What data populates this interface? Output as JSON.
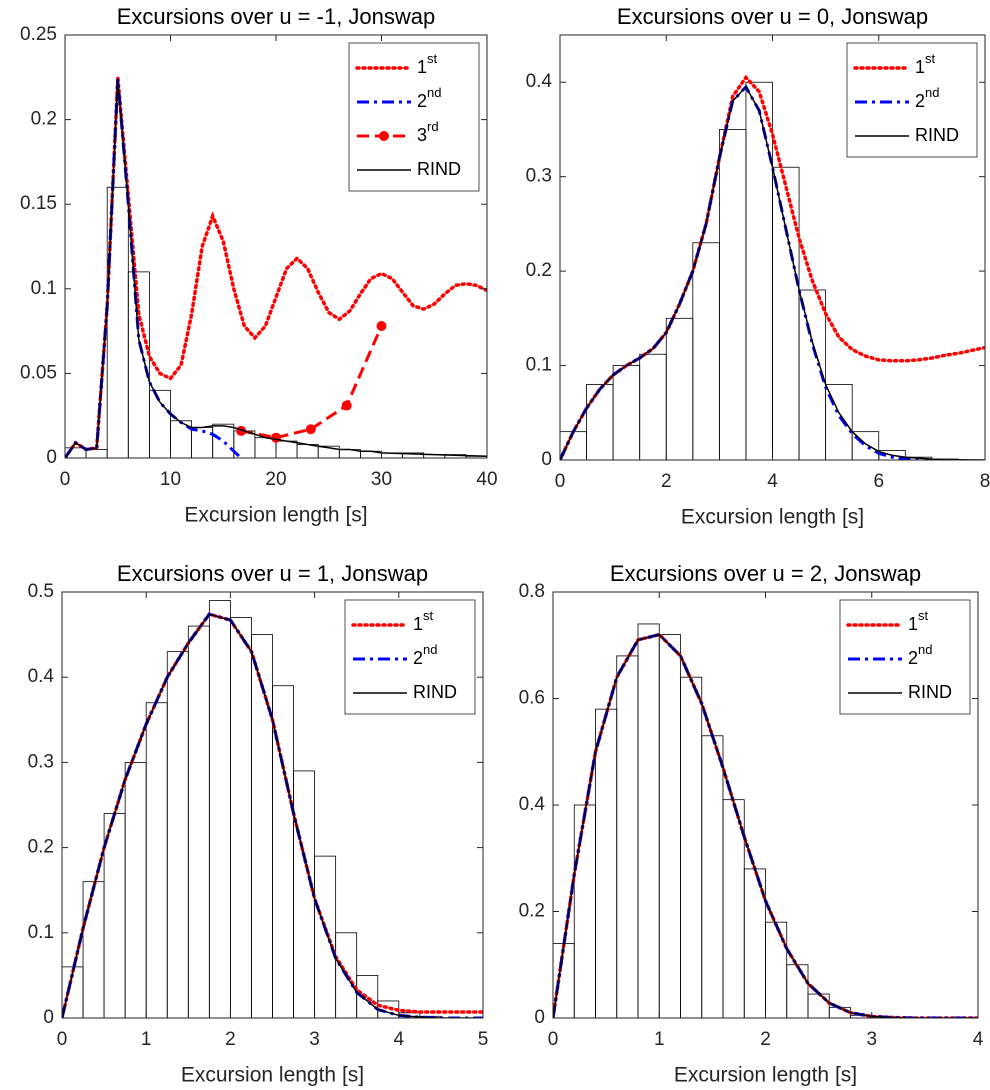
{
  "chart_data": [
    {
      "type": "line",
      "title": "Excursions over u = -1, Jonswap",
      "xlabel": "Excursion length [s]",
      "xlim": [
        0,
        40
      ],
      "ylim": [
        0,
        0.25
      ],
      "xticks": [
        0,
        10,
        20,
        30,
        40
      ],
      "yticks": [
        0,
        0.05,
        0.1,
        0.15,
        0.2,
        0.25
      ],
      "legend": "northeast",
      "series": [
        {
          "name": "1st",
          "color": "#ff0000",
          "style": "dotted",
          "x": [
            0,
            1,
            2,
            3,
            4,
            5,
            6,
            7,
            8,
            9,
            10,
            11,
            12,
            13,
            14,
            15,
            16,
            17,
            18,
            19,
            20,
            21,
            22,
            23,
            24,
            25,
            26,
            27,
            28,
            29,
            30,
            31,
            32,
            33,
            34,
            35,
            36,
            37,
            38,
            39,
            40
          ],
          "values": [
            0,
            0.009,
            0.005,
            0.006,
            0.09,
            0.225,
            0.155,
            0.085,
            0.06,
            0.05,
            0.047,
            0.055,
            0.085,
            0.125,
            0.143,
            0.128,
            0.1,
            0.078,
            0.071,
            0.078,
            0.095,
            0.112,
            0.118,
            0.112,
            0.098,
            0.086,
            0.082,
            0.087,
            0.097,
            0.106,
            0.109,
            0.106,
            0.098,
            0.09,
            0.088,
            0.091,
            0.097,
            0.102,
            0.103,
            0.102,
            0.099
          ]
        },
        {
          "name": "2nd",
          "color": "#0000ff",
          "style": "dashdot",
          "x": [
            0,
            1,
            2,
            3,
            4,
            5,
            6,
            7,
            8,
            9,
            10,
            11,
            12,
            13,
            14,
            15,
            16,
            16.7
          ],
          "values": [
            0,
            0.009,
            0.005,
            0.006,
            0.09,
            0.224,
            0.15,
            0.07,
            0.045,
            0.033,
            0.026,
            0.021,
            0.017,
            0.016,
            0.014,
            0.01,
            0.004,
            0
          ]
        },
        {
          "name": "3rd",
          "color": "#ff0000",
          "style": "dashed",
          "marker": "o",
          "x": [
            16.7,
            20,
            23.3,
            26.7,
            30
          ],
          "values": [
            0.016,
            0.012,
            0.017,
            0.031,
            0.078
          ]
        },
        {
          "name": "RIND",
          "color": "#000000",
          "style": "solid",
          "x": [
            0,
            1,
            2,
            3,
            4,
            5,
            6,
            7,
            8,
            9,
            10,
            11,
            12,
            13,
            14,
            15,
            16,
            17,
            18,
            19,
            20,
            21,
            22,
            23,
            24,
            25,
            26,
            27,
            28,
            29,
            30,
            35,
            40
          ],
          "values": [
            0,
            0.009,
            0.005,
            0.006,
            0.09,
            0.224,
            0.15,
            0.07,
            0.045,
            0.033,
            0.026,
            0.021,
            0.018,
            0.018,
            0.019,
            0.019,
            0.018,
            0.016,
            0.014,
            0.012,
            0.011,
            0.01,
            0.009,
            0.008,
            0.007,
            0.006,
            0.005,
            0.005,
            0.004,
            0.004,
            0.003,
            0.002,
            0.001
          ]
        }
      ],
      "histogram": {
        "bins": [
          0,
          2,
          4,
          6,
          8,
          10,
          12,
          14,
          16,
          18,
          20,
          22,
          24,
          26,
          28,
          30,
          32,
          34,
          36,
          38,
          40
        ],
        "counts": [
          0.006,
          0.005,
          0.16,
          0.11,
          0.04,
          0.022,
          0.018,
          0.02,
          0.016,
          0.012,
          0.01,
          0.008,
          0.007,
          0.005,
          0.004,
          0.003,
          0.003,
          0.002,
          0.002,
          0.001
        ]
      }
    },
    {
      "type": "line",
      "title": "Excursions over u = 0, Jonswap",
      "xlabel": "Excursion length [s]",
      "xlim": [
        0,
        8
      ],
      "ylim": [
        0,
        0.45
      ],
      "xticks": [
        0,
        2,
        4,
        6,
        8
      ],
      "yticks": [
        0,
        0.1,
        0.2,
        0.3,
        0.4
      ],
      "legend": "northeast",
      "series": [
        {
          "name": "1st",
          "color": "#ff0000",
          "style": "dotted",
          "x": [
            0,
            0.25,
            0.5,
            0.75,
            1,
            1.25,
            1.5,
            1.75,
            2,
            2.25,
            2.5,
            2.75,
            3,
            3.25,
            3.5,
            3.75,
            4,
            4.25,
            4.5,
            4.75,
            5,
            5.25,
            5.5,
            5.75,
            6,
            6.25,
            6.5,
            6.75,
            7,
            7.25,
            7.5,
            7.75,
            8
          ],
          "values": [
            0,
            0.03,
            0.055,
            0.075,
            0.09,
            0.1,
            0.108,
            0.118,
            0.135,
            0.165,
            0.2,
            0.25,
            0.32,
            0.385,
            0.405,
            0.39,
            0.345,
            0.29,
            0.235,
            0.19,
            0.155,
            0.13,
            0.117,
            0.11,
            0.106,
            0.105,
            0.105,
            0.106,
            0.108,
            0.111,
            0.113,
            0.116,
            0.119
          ]
        },
        {
          "name": "2nd",
          "color": "#0000ff",
          "style": "dashdot",
          "x": [
            0,
            0.25,
            0.5,
            0.75,
            1,
            1.25,
            1.5,
            1.75,
            2,
            2.25,
            2.5,
            2.75,
            3,
            3.25,
            3.5,
            3.75,
            4,
            4.25,
            4.5,
            4.75,
            5,
            5.25,
            5.5,
            5.75,
            6,
            6.25,
            6.5,
            6.75
          ],
          "values": [
            0,
            0.03,
            0.055,
            0.075,
            0.09,
            0.1,
            0.108,
            0.118,
            0.135,
            0.165,
            0.2,
            0.25,
            0.32,
            0.38,
            0.395,
            0.37,
            0.31,
            0.245,
            0.18,
            0.123,
            0.077,
            0.047,
            0.028,
            0.015,
            0.007,
            0.003,
            0.001,
            0
          ]
        },
        {
          "name": "RIND",
          "color": "#000000",
          "style": "solid",
          "x": [
            0,
            0.25,
            0.5,
            0.75,
            1,
            1.25,
            1.5,
            1.75,
            2,
            2.25,
            2.5,
            2.75,
            3,
            3.25,
            3.5,
            3.75,
            4,
            4.25,
            4.5,
            4.75,
            5,
            5.25,
            5.5,
            5.75,
            6,
            6.25,
            6.5,
            6.75,
            7,
            7.25,
            7.5,
            7.75,
            8
          ],
          "values": [
            0,
            0.03,
            0.055,
            0.075,
            0.09,
            0.1,
            0.108,
            0.118,
            0.135,
            0.165,
            0.2,
            0.25,
            0.32,
            0.38,
            0.395,
            0.37,
            0.31,
            0.245,
            0.18,
            0.125,
            0.08,
            0.05,
            0.03,
            0.017,
            0.009,
            0.005,
            0.003,
            0.002,
            0.001,
            0.0005,
            0.0002,
            0.0001,
            0
          ]
        }
      ],
      "histogram": {
        "bins": [
          0,
          0.5,
          1,
          1.5,
          2,
          2.5,
          3,
          3.5,
          4,
          4.5,
          5,
          5.5,
          6,
          6.5,
          7,
          7.5,
          8
        ],
        "counts": [
          0.03,
          0.08,
          0.1,
          0.112,
          0.15,
          0.23,
          0.35,
          0.4,
          0.31,
          0.18,
          0.08,
          0.03,
          0.01,
          0.003,
          0.001,
          0
        ]
      }
    },
    {
      "type": "line",
      "title": "Excursions over u = 1, Jonswap",
      "xlabel": "Excursion length [s]",
      "xlim": [
        0,
        5
      ],
      "ylim": [
        0,
        0.5
      ],
      "xticks": [
        0,
        1,
        2,
        3,
        4,
        5
      ],
      "yticks": [
        0,
        0.1,
        0.2,
        0.3,
        0.4,
        0.5
      ],
      "legend": "northeast",
      "series": [
        {
          "name": "1st",
          "color": "#ff0000",
          "style": "dotted",
          "x": [
            0,
            0.25,
            0.5,
            0.75,
            1,
            1.25,
            1.5,
            1.75,
            2,
            2.25,
            2.5,
            2.75,
            3,
            3.25,
            3.5,
            3.75,
            4,
            4.25,
            4.5,
            4.75,
            5
          ],
          "values": [
            0,
            0.105,
            0.2,
            0.28,
            0.345,
            0.4,
            0.44,
            0.474,
            0.467,
            0.43,
            0.35,
            0.24,
            0.14,
            0.072,
            0.033,
            0.015,
            0.009,
            0.007,
            0.007,
            0.007,
            0.007
          ]
        },
        {
          "name": "2nd",
          "color": "#0000ff",
          "style": "dashdot",
          "x": [
            0,
            0.25,
            0.5,
            0.75,
            1,
            1.25,
            1.5,
            1.75,
            2,
            2.25,
            2.5,
            2.75,
            3,
            3.25,
            3.5,
            3.75,
            4,
            4.25,
            4.5,
            4.75,
            5
          ],
          "values": [
            0,
            0.105,
            0.2,
            0.28,
            0.345,
            0.4,
            0.44,
            0.474,
            0.467,
            0.43,
            0.35,
            0.24,
            0.14,
            0.07,
            0.03,
            0.01,
            0.003,
            0.001,
            0,
            0,
            0
          ]
        },
        {
          "name": "RIND",
          "color": "#000000",
          "style": "solid",
          "x": [
            0,
            0.25,
            0.5,
            0.75,
            1,
            1.25,
            1.5,
            1.75,
            2,
            2.25,
            2.5,
            2.75,
            3,
            3.25,
            3.5,
            3.75,
            4,
            4.25,
            4.5,
            4.75,
            5
          ],
          "values": [
            0,
            0.105,
            0.2,
            0.28,
            0.345,
            0.4,
            0.44,
            0.474,
            0.467,
            0.43,
            0.35,
            0.24,
            0.14,
            0.07,
            0.03,
            0.01,
            0.003,
            0.001,
            0,
            0,
            0
          ]
        }
      ],
      "histogram": {
        "bins": [
          0,
          0.25,
          0.5,
          0.75,
          1,
          1.25,
          1.5,
          1.75,
          2,
          2.25,
          2.5,
          2.75,
          3,
          3.25,
          3.5,
          3.75,
          4,
          4.25,
          4.5,
          4.75,
          5
        ],
        "counts": [
          0.06,
          0.16,
          0.24,
          0.3,
          0.37,
          0.43,
          0.46,
          0.49,
          0.47,
          0.45,
          0.39,
          0.29,
          0.19,
          0.1,
          0.05,
          0.02,
          0.006,
          0.002,
          0,
          0
        ]
      }
    },
    {
      "type": "line",
      "title": "Excursions over u = 2, Jonswap",
      "xlabel": "Excursion length [s]",
      "xlim": [
        0,
        4
      ],
      "ylim": [
        0,
        0.8
      ],
      "xticks": [
        0,
        1,
        2,
        3,
        4
      ],
      "yticks": [
        0,
        0.2,
        0.4,
        0.6,
        0.8
      ],
      "legend": "northeast",
      "series": [
        {
          "name": "1st",
          "color": "#ff0000",
          "style": "dotted",
          "x": [
            0,
            0.2,
            0.4,
            0.6,
            0.8,
            1,
            1.2,
            1.4,
            1.6,
            1.8,
            2,
            2.2,
            2.4,
            2.6,
            2.8,
            3,
            3.2,
            3.4,
            3.6,
            3.8,
            4
          ],
          "values": [
            0,
            0.27,
            0.5,
            0.64,
            0.71,
            0.72,
            0.68,
            0.59,
            0.47,
            0.34,
            0.22,
            0.13,
            0.065,
            0.028,
            0.01,
            0.003,
            0.001,
            0,
            0,
            0,
            0
          ]
        },
        {
          "name": "2nd",
          "color": "#0000ff",
          "style": "dashdot",
          "x": [
            0,
            0.2,
            0.4,
            0.6,
            0.8,
            1,
            1.2,
            1.4,
            1.6,
            1.8,
            2,
            2.2,
            2.4,
            2.6,
            2.8,
            3,
            3.2,
            3.4,
            3.6,
            3.8,
            4
          ],
          "values": [
            0,
            0.27,
            0.5,
            0.64,
            0.71,
            0.72,
            0.68,
            0.59,
            0.47,
            0.34,
            0.22,
            0.13,
            0.065,
            0.028,
            0.01,
            0.003,
            0.001,
            0,
            0,
            0,
            0
          ]
        },
        {
          "name": "RIND",
          "color": "#000000",
          "style": "solid",
          "x": [
            0,
            0.2,
            0.4,
            0.6,
            0.8,
            1,
            1.2,
            1.4,
            1.6,
            1.8,
            2,
            2.2,
            2.4,
            2.6,
            2.8,
            3,
            3.2,
            3.4,
            3.6,
            3.8,
            4
          ],
          "values": [
            0,
            0.27,
            0.5,
            0.64,
            0.71,
            0.72,
            0.68,
            0.59,
            0.47,
            0.34,
            0.22,
            0.13,
            0.065,
            0.028,
            0.01,
            0.003,
            0.001,
            0,
            0,
            0,
            0
          ]
        }
      ],
      "histogram": {
        "bins": [
          0,
          0.2,
          0.4,
          0.6,
          0.8,
          1,
          1.2,
          1.4,
          1.6,
          1.8,
          2,
          2.2,
          2.4,
          2.6,
          2.8,
          3,
          3.2,
          3.4,
          3.6,
          3.8,
          4
        ],
        "counts": [
          0.14,
          0.4,
          0.58,
          0.68,
          0.74,
          0.72,
          0.64,
          0.53,
          0.41,
          0.28,
          0.18,
          0.1,
          0.045,
          0.02,
          0.005,
          0.002,
          0,
          0,
          0,
          0
        ]
      }
    }
  ]
}
